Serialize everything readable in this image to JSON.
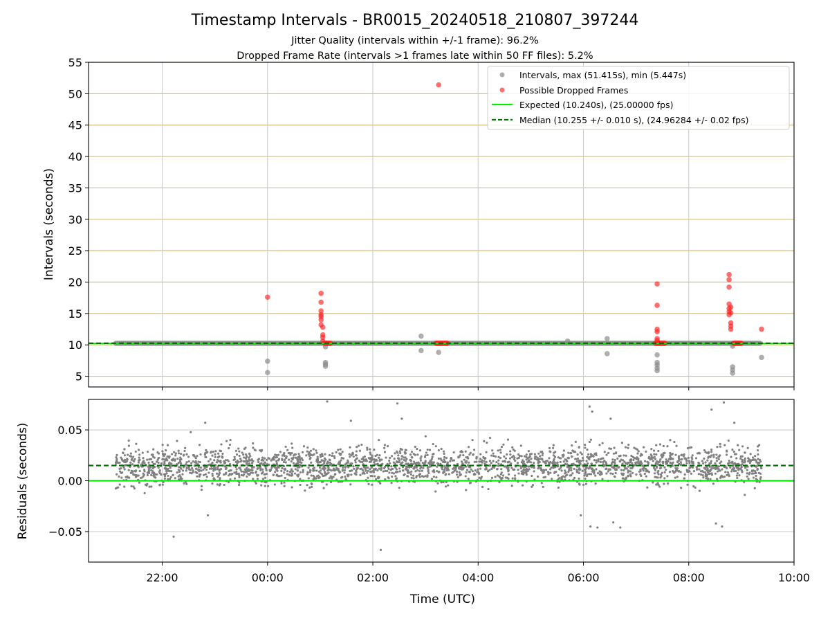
{
  "chart_data": [
    {
      "type": "scatter",
      "title": "Timestamp Intervals - BR0015_20240518_210807_397244",
      "subtitle_1": "Jitter Quality (intervals within +/-1 frame): 96.2%",
      "subtitle_2": "Dropped Frame Rate (intervals >1 frames late within 50 FF files): 5.2%",
      "xlabel": "",
      "ylabel": "Intervals (seconds)",
      "xlim_hours": [
        -3.4,
        10.0
      ],
      "ylim": [
        3.3,
        55
      ],
      "yticks": [
        5,
        10,
        15,
        20,
        25,
        30,
        35,
        40,
        45,
        50,
        55
      ],
      "grid": "on",
      "legend_position": "top-right",
      "colors": {
        "intervals": "#8c8c8c",
        "dropped": "#ff2020",
        "expected": "#00ee00",
        "median": "#007000",
        "hgrid": "#d4be82",
        "vgrid": "#c8c8c8"
      },
      "legend": [
        "Intervals, max (51.415s), min (5.447s)",
        "Possible Dropped Frames",
        "Expected (10.240s), (25.00000 fps)",
        "Median (10.255 +/- 0.010 s), (24.96284 +/- 0.02 fps)"
      ],
      "expected_value": 10.24,
      "median_value": 10.255,
      "interval_baseline": {
        "value": 10.25,
        "x_start": "21:07",
        "x_end": "09:23"
      },
      "series": [
        {
          "name": "Intervals, max (51.415s), min (5.447s)",
          "points": [
            [
              "00:00",
              7.4
            ],
            [
              "00:00",
              5.6
            ],
            [
              "01:06",
              7.2
            ],
            [
              "01:06",
              6.9
            ],
            [
              "01:06",
              6.6
            ],
            [
              "01:06",
              9.7
            ],
            [
              "02:55",
              11.4
            ],
            [
              "02:55",
              9.1
            ],
            [
              "03:15",
              8.8
            ],
            [
              "06:27",
              11.0
            ],
            [
              "06:27",
              8.6
            ],
            [
              "05:42",
              10.6
            ],
            [
              "07:24",
              8.4
            ],
            [
              "07:24",
              7.2
            ],
            [
              "07:24",
              6.8
            ],
            [
              "07:24",
              6.3
            ],
            [
              "07:24",
              5.9
            ],
            [
              "08:50",
              9.8
            ],
            [
              "08:50",
              6.5
            ],
            [
              "08:50",
              6.0
            ],
            [
              "08:50",
              5.5
            ],
            [
              "09:23",
              8.0
            ]
          ]
        },
        {
          "name": "Possible Dropped Frames",
          "points": [
            [
              "00:00",
              17.6
            ],
            [
              "03:15",
              51.4
            ],
            [
              "09:23",
              12.5
            ],
            [
              "01:01",
              18.2
            ],
            [
              "01:01",
              16.8
            ],
            [
              "01:01",
              15.4
            ],
            [
              "01:01",
              14.8
            ],
            [
              "01:01",
              14.5
            ],
            [
              "01:01",
              14.0
            ],
            [
              "01:01",
              13.2
            ],
            [
              "01:03",
              12.8
            ],
            [
              "01:03",
              11.6
            ],
            [
              "01:03",
              11.2
            ],
            [
              "01:03",
              10.6
            ],
            [
              "07:24",
              19.7
            ],
            [
              "07:24",
              16.3
            ],
            [
              "07:24",
              12.5
            ],
            [
              "07:24",
              12.1
            ],
            [
              "07:24",
              11.0
            ],
            [
              "07:24",
              10.7
            ],
            [
              "08:46",
              21.2
            ],
            [
              "08:46",
              20.4
            ],
            [
              "08:46",
              19.2
            ],
            [
              "08:46",
              16.5
            ],
            [
              "08:46",
              15.8
            ],
            [
              "08:46",
              15.3
            ],
            [
              "08:46",
              14.8
            ],
            [
              "08:48",
              16.0
            ],
            [
              "08:48",
              15.1
            ],
            [
              "08:48",
              13.5
            ],
            [
              "08:48",
              13.0
            ],
            [
              "08:48",
              12.5
            ]
          ],
          "clusters_at_baseline": [
            {
              "value": 10.25,
              "x_start": "01:05",
              "x_end": "01:12"
            },
            {
              "value": 10.25,
              "x_start": "03:12",
              "x_end": "03:25"
            },
            {
              "value": 10.25,
              "x_start": "07:22",
              "x_end": "07:33"
            },
            {
              "value": 10.25,
              "x_start": "08:51",
              "x_end": "09:00"
            }
          ]
        },
        {
          "name": "Expected (10.240s), (25.00000 fps)",
          "line_value": 10.24
        },
        {
          "name": "Median (10.255 +/- 0.010 s), (24.96284 +/- 0.02 fps)",
          "line_value": 10.255
        }
      ]
    },
    {
      "type": "scatter",
      "title": "",
      "xlabel": "Time (UTC)",
      "ylabel": "Residuals (seconds)",
      "xlim_hours": [
        -3.4,
        10.0
      ],
      "ylim": [
        -0.08,
        0.08
      ],
      "yticks": [
        0.05,
        0.0,
        -0.05
      ],
      "ytick_labels": [
        "0.05",
        "0.00",
        "−0.05"
      ],
      "xticks": [
        "22:00",
        "00:00",
        "02:00",
        "04:00",
        "06:00",
        "08:00",
        "10:00"
      ],
      "xtick_hours": [
        -2,
        0,
        2,
        4,
        6,
        8,
        10
      ],
      "grid": "on",
      "colors": {
        "residuals": "#808080",
        "expected": "#00ee00",
        "median": "#007000",
        "grid": "#c8c8c8"
      },
      "expected_value": 0.0,
      "median_value": 0.015,
      "residuals_summary": {
        "x_start": "21:07",
        "x_end": "09:23",
        "approx_points": 2600,
        "center": 0.015,
        "spread_sd": 0.009
      },
      "residual_outliers": [
        [
          "21:17",
          0.031
        ],
        [
          "22:13",
          -0.055
        ],
        [
          "22:49",
          0.057
        ],
        [
          "22:52",
          -0.034
        ],
        [
          "01:08",
          0.078
        ],
        [
          "01:35",
          0.059
        ],
        [
          "02:09",
          -0.068
        ],
        [
          "02:28",
          0.076
        ],
        [
          "02:33",
          0.061
        ],
        [
          "05:57",
          -0.034
        ],
        [
          "06:08",
          -0.045
        ],
        [
          "06:16",
          -0.046
        ],
        [
          "06:34",
          -0.041
        ],
        [
          "06:42",
          -0.046
        ],
        [
          "06:07",
          0.073
        ],
        [
          "06:10",
          0.068
        ],
        [
          "06:31",
          0.061
        ],
        [
          "08:26",
          0.07
        ],
        [
          "08:31",
          -0.042
        ],
        [
          "08:38",
          -0.045
        ],
        [
          "08:40",
          0.077
        ],
        [
          "08:52",
          0.057
        ]
      ]
    }
  ]
}
